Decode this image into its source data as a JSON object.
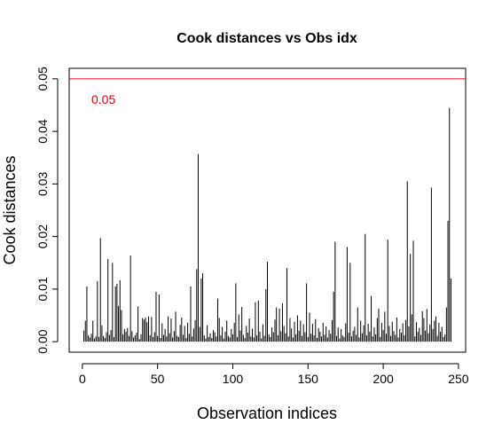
{
  "chart_data": {
    "type": "spike",
    "title": "Cook distances vs Obs idx",
    "xlabel": "Observation indices",
    "ylabel": "Cook distances",
    "color": "#000000",
    "xlim": [
      -8.76,
      254.76
    ],
    "ylim": [
      -0.002,
      0.052
    ],
    "xticks": [
      0,
      50,
      100,
      150,
      200,
      250
    ],
    "yticks": [
      {
        "value": 0,
        "label": "0.00"
      },
      0.01,
      0.02,
      0.03,
      0.04,
      0.05
    ],
    "hline": {
      "value": 0.05,
      "label": "0.05",
      "color": "#e3001b"
    },
    "x": [
      1,
      2,
      3,
      4,
      5,
      6,
      7,
      8,
      9,
      10,
      11,
      12,
      13,
      14,
      15,
      16,
      17,
      18,
      19,
      20,
      21,
      22,
      23,
      24,
      25,
      26,
      27,
      28,
      29,
      30,
      31,
      32,
      33,
      34,
      35,
      36,
      37,
      38,
      39,
      40,
      41,
      42,
      43,
      44,
      45,
      46,
      47,
      48,
      49,
      50,
      51,
      52,
      53,
      54,
      55,
      56,
      57,
      58,
      59,
      60,
      61,
      62,
      63,
      64,
      65,
      66,
      67,
      68,
      69,
      70,
      71,
      72,
      73,
      74,
      75,
      76,
      77,
      78,
      79,
      80,
      81,
      82,
      83,
      84,
      85,
      86,
      87,
      88,
      89,
      90,
      91,
      92,
      93,
      94,
      95,
      96,
      97,
      98,
      99,
      100,
      101,
      102,
      103,
      104,
      105,
      106,
      107,
      108,
      109,
      110,
      111,
      112,
      113,
      114,
      115,
      116,
      117,
      118,
      119,
      120,
      121,
      122,
      123,
      124,
      125,
      126,
      127,
      128,
      129,
      130,
      131,
      132,
      133,
      134,
      135,
      136,
      137,
      138,
      139,
      140,
      141,
      142,
      143,
      144,
      145,
      146,
      147,
      148,
      149,
      150,
      151,
      152,
      153,
      154,
      155,
      156,
      157,
      158,
      159,
      160,
      161,
      162,
      163,
      164,
      165,
      166,
      167,
      168,
      169,
      170,
      171,
      172,
      173,
      174,
      175,
      176,
      177,
      178,
      179,
      180,
      181,
      182,
      183,
      184,
      185,
      186,
      187,
      188,
      189,
      190,
      191,
      192,
      193,
      194,
      195,
      196,
      197,
      198,
      199,
      200,
      201,
      202,
      203,
      204,
      205,
      206,
      207,
      208,
      209,
      210,
      211,
      212,
      213,
      214,
      215,
      216,
      217,
      218,
      219,
      220,
      221,
      222,
      223,
      224,
      225,
      226,
      227,
      228,
      229,
      230,
      231,
      232,
      233,
      234,
      235,
      236,
      237,
      238,
      239,
      240,
      241,
      242,
      243,
      244,
      245
    ],
    "values": [
      0.0021,
      0.004,
      0.0105,
      0.0012,
      0.0008,
      0.0015,
      0.004,
      0.0006,
      0.001,
      0.0115,
      0.0009,
      0.0197,
      0.0031,
      0.0011,
      0.0007,
      0.0018,
      0.0157,
      0.0013,
      0.0022,
      0.015,
      0.0009,
      0.0105,
      0.011,
      0.0068,
      0.0117,
      0.006,
      0.0014,
      0.0024,
      0.0019,
      0.0026,
      0.0011,
      0.0164,
      0.002,
      0.0008,
      0.0012,
      0.0017,
      0.0067,
      0.0005,
      0.0014,
      0.0045,
      0.0042,
      0.0046,
      0.0037,
      0.0048,
      0.0012,
      0.0047,
      0.0009,
      0.0018,
      0.0095,
      0.0011,
      0.009,
      0.0007,
      0.0035,
      0.0013,
      0.0024,
      0.001,
      0.0048,
      0.0016,
      0.0044,
      0.0008,
      0.002,
      0.0057,
      0.0011,
      0.0009,
      0.0032,
      0.0046,
      0.0013,
      0.003,
      0.0007,
      0.0036,
      0.0015,
      0.0105,
      0.001,
      0.0025,
      0.0041,
      0.0138,
      0.0357,
      0.0028,
      0.012,
      0.013,
      0.0012,
      0.0006,
      0.0031,
      0.0009,
      0.0016,
      0.0007,
      0.0022,
      0.0018,
      0.001,
      0.0082,
      0.0045,
      0.0012,
      0.0028,
      0.0006,
      0.0019,
      0.004,
      0.0011,
      0.0008,
      0.0024,
      0.0014,
      0.0036,
      0.0111,
      0.0009,
      0.0052,
      0.0021,
      0.0066,
      0.0013,
      0.0007,
      0.003,
      0.0017,
      0.0044,
      0.001,
      0.0025,
      0.0008,
      0.0075,
      0.0012,
      0.0078,
      0.0019,
      0.0006,
      0.0033,
      0.0011,
      0.01,
      0.0152,
      0.0014,
      0.0009,
      0.0027,
      0.0018,
      0.0042,
      0.0065,
      0.0012,
      0.0063,
      0.002,
      0.0073,
      0.003,
      0.0016,
      0.014,
      0.001,
      0.0045,
      0.0025,
      0.0008,
      0.0038,
      0.0014,
      0.005,
      0.0021,
      0.004,
      0.0011,
      0.0033,
      0.0018,
      0.0111,
      0.0009,
      0.0055,
      0.0015,
      0.0034,
      0.0012,
      0.0043,
      0.0007,
      0.0026,
      0.0019,
      0.001,
      0.0036,
      0.0013,
      0.0029,
      0.0008,
      0.0022,
      0.0015,
      0.0041,
      0.0095,
      0.019,
      0.0011,
      0.0027,
      0.0006,
      0.0024,
      0.0012,
      0.0009,
      0.0035,
      0.018,
      0.0017,
      0.015,
      0.001,
      0.0021,
      0.0028,
      0.0013,
      0.0065,
      0.0008,
      0.004,
      0.0016,
      0.0031,
      0.0205,
      0.0012,
      0.0034,
      0.0019,
      0.0087,
      0.001,
      0.0027,
      0.0014,
      0.0045,
      0.0063,
      0.0009,
      0.0036,
      0.0022,
      0.0057,
      0.0015,
      0.0194,
      0.003,
      0.0011,
      0.0038,
      0.002,
      0.0013,
      0.0046,
      0.0008,
      0.0024,
      0.0017,
      0.0035,
      0.0012,
      0.0041,
      0.0305,
      0.0029,
      0.0167,
      0.0052,
      0.0192,
      0.001,
      0.0037,
      0.0019,
      0.0026,
      0.0013,
      0.0058,
      0.0045,
      0.0021,
      0.0062,
      0.0016,
      0.0033,
      0.0293,
      0.0024,
      0.004,
      0.0048,
      0.0011,
      0.0036,
      0.0019,
      0.0028,
      0.0009,
      0.0014,
      0.0065,
      0.023,
      0.0445,
      0.012
    ]
  }
}
